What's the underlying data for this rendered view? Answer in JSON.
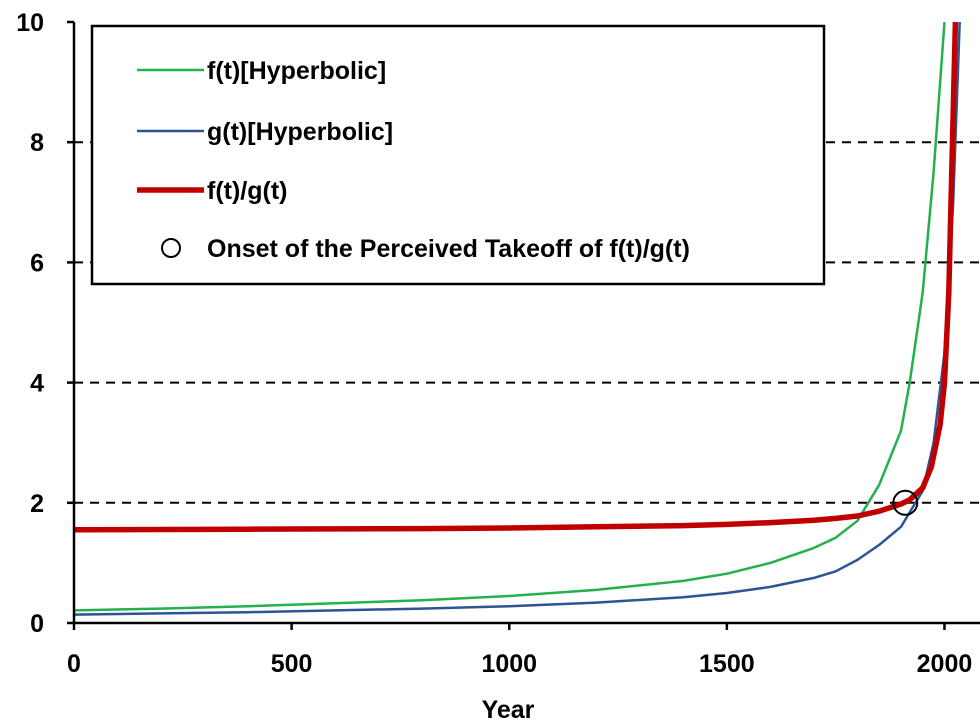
{
  "chart_data": {
    "type": "line",
    "xlabel": "Year",
    "ylabel": "",
    "xlim": [
      0,
      2100
    ],
    "ylim": [
      0,
      10
    ],
    "x_ticks": [
      "0",
      "500",
      "1000",
      "1500",
      "2000"
    ],
    "x_tick_values": [
      0,
      500,
      1000,
      1500,
      2000
    ],
    "y_ticks": [
      "0",
      "2",
      "4",
      "6",
      "8",
      "10"
    ],
    "y_tick_values": [
      0,
      2,
      4,
      6,
      8,
      10
    ],
    "horizontal_gridlines": "dashed at 2, 4, 6, 8",
    "legend_position": "top-left",
    "series": [
      {
        "name": "f(t)[Hyperbolic]",
        "color": "#22b14c",
        "style": "thin",
        "points": [
          [
            0,
            0.21
          ],
          [
            200,
            0.24
          ],
          [
            400,
            0.28
          ],
          [
            600,
            0.33
          ],
          [
            800,
            0.38
          ],
          [
            1000,
            0.45
          ],
          [
            1200,
            0.55
          ],
          [
            1400,
            0.7
          ],
          [
            1500,
            0.82
          ],
          [
            1600,
            1.0
          ],
          [
            1700,
            1.25
          ],
          [
            1750,
            1.42
          ],
          [
            1800,
            1.7
          ],
          [
            1850,
            2.3
          ],
          [
            1900,
            3.2
          ],
          [
            1920,
            4.0
          ],
          [
            1950,
            5.5
          ],
          [
            1975,
            7.5
          ],
          [
            2000,
            10
          ]
        ]
      },
      {
        "name": "g(t)[Hyperbolic]",
        "color": "#2e5496",
        "style": "thin",
        "points": [
          [
            0,
            0.14
          ],
          [
            200,
            0.16
          ],
          [
            400,
            0.18
          ],
          [
            600,
            0.21
          ],
          [
            800,
            0.24
          ],
          [
            1000,
            0.28
          ],
          [
            1200,
            0.34
          ],
          [
            1400,
            0.43
          ],
          [
            1500,
            0.5
          ],
          [
            1600,
            0.6
          ],
          [
            1700,
            0.75
          ],
          [
            1750,
            0.86
          ],
          [
            1800,
            1.05
          ],
          [
            1850,
            1.3
          ],
          [
            1900,
            1.6
          ],
          [
            1950,
            2.2
          ],
          [
            1975,
            3.0
          ],
          [
            2000,
            4.5
          ],
          [
            2020,
            7.0
          ],
          [
            2035,
            10
          ]
        ]
      },
      {
        "name": "f(t)/g(t)",
        "color": "#c00000",
        "style": "thick",
        "points": [
          [
            0,
            1.55
          ],
          [
            200,
            1.555
          ],
          [
            400,
            1.56
          ],
          [
            600,
            1.565
          ],
          [
            800,
            1.57
          ],
          [
            1000,
            1.58
          ],
          [
            1200,
            1.6
          ],
          [
            1400,
            1.62
          ],
          [
            1500,
            1.64
          ],
          [
            1600,
            1.67
          ],
          [
            1700,
            1.71
          ],
          [
            1750,
            1.74
          ],
          [
            1800,
            1.78
          ],
          [
            1850,
            1.86
          ],
          [
            1900,
            1.98
          ],
          [
            1920,
            2.05
          ],
          [
            1950,
            2.25
          ],
          [
            1970,
            2.6
          ],
          [
            1990,
            3.3
          ],
          [
            2000,
            4.0
          ],
          [
            2010,
            5.5
          ],
          [
            2020,
            8.5
          ],
          [
            2025,
            10
          ]
        ]
      }
    ],
    "markers": [
      {
        "name": "Onset of the Perceived Takeoff of f(t)/g(t)",
        "shape": "open circle",
        "x": 1910,
        "y": 2.0
      }
    ]
  }
}
